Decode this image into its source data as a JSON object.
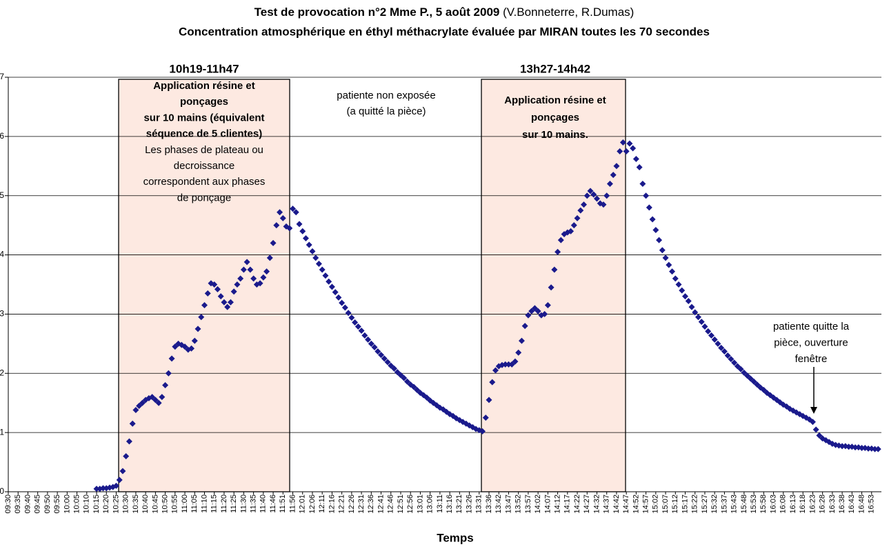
{
  "chart_data": {
    "type": "line",
    "marker": "diamond",
    "color": "#1a1a8c",
    "title": "Test de provocation n°2 Mme P.,  5 août 2009",
    "title_authors": "(V.Bonneterre, R.Dumas)",
    "subtitle": "Concentration atmosphérique en éthyl méthacrylate évaluée par MIRAN toutes les 70 secondes",
    "x_label": "Temps",
    "ylim": [
      0,
      7
    ],
    "yticks": [
      0,
      1,
      2,
      3,
      4,
      5,
      6,
      7
    ],
    "grid": true,
    "categories": [
      "09:30",
      null,
      null,
      "09:35",
      null,
      null,
      "09:40",
      null,
      null,
      "09:45",
      null,
      null,
      "09:50",
      null,
      null,
      "09:55",
      null,
      null,
      "10:00",
      null,
      null,
      "10:05",
      null,
      null,
      "10:10",
      null,
      null,
      "10:15",
      null,
      null,
      "10:20",
      null,
      null,
      "10:25",
      null,
      null,
      "10:30",
      null,
      null,
      "10:35",
      null,
      null,
      "10:40",
      null,
      null,
      "10:45",
      null,
      null,
      "10:50",
      null,
      null,
      "10:55",
      null,
      null,
      "11:00",
      null,
      null,
      "11:05",
      null,
      null,
      "11:10",
      null,
      null,
      "11:15",
      null,
      null,
      "11:20",
      null,
      null,
      "11:25",
      null,
      null,
      "11:30",
      null,
      null,
      "11:35",
      null,
      null,
      "11:40",
      null,
      null,
      "11:46",
      null,
      null,
      "11:51",
      null,
      null,
      "11:56",
      null,
      null,
      "12:01",
      null,
      null,
      "12:06",
      null,
      null,
      "12:11",
      null,
      null,
      "12:16",
      null,
      null,
      "12:21",
      null,
      null,
      "12:26",
      null,
      null,
      "12:31",
      null,
      null,
      "12:36",
      null,
      null,
      "12:41",
      null,
      null,
      "12:46",
      null,
      null,
      "12:51",
      null,
      null,
      "12:56",
      null,
      null,
      "13:01",
      null,
      null,
      "13:06",
      null,
      null,
      "13:11",
      null,
      null,
      "13:16",
      null,
      null,
      "13:21",
      null,
      null,
      "13:26",
      null,
      null,
      "13:31",
      null,
      null,
      "13:36",
      null,
      null,
      "13:42",
      null,
      null,
      "13:47",
      null,
      null,
      "13:52",
      null,
      null,
      "13:57",
      null,
      null,
      "14:02",
      null,
      null,
      "14:07",
      null,
      null,
      "14:12",
      null,
      null,
      "14:17",
      null,
      null,
      "14:22",
      null,
      null,
      "14:27",
      null,
      null,
      "14:32",
      null,
      null,
      "14:37",
      null,
      null,
      "14:42",
      null,
      null,
      "14:47",
      null,
      null,
      "14:52",
      null,
      null,
      "14:57",
      null,
      null,
      "15:02",
      null,
      null,
      "15:07",
      null,
      null,
      "15:12",
      null,
      null,
      "15:17",
      null,
      null,
      "15:22",
      null,
      null,
      "15:27",
      null,
      null,
      "15:32",
      null,
      null,
      "15:37",
      null,
      null,
      "15:43",
      null,
      null,
      "15:48",
      null,
      null,
      "15:53",
      null,
      null,
      "15:58",
      null,
      null,
      "16:03",
      null,
      null,
      "16:08",
      null,
      null,
      "16:13",
      null,
      null,
      "16:18",
      null,
      null,
      "16:23",
      null,
      null,
      "16:28",
      null,
      null,
      "16:33",
      null,
      null,
      "16:38",
      null,
      null,
      "16:43",
      null,
      null,
      "16:48",
      null,
      null,
      "16:53",
      null,
      null
    ],
    "values": [
      null,
      null,
      null,
      null,
      null,
      null,
      null,
      null,
      null,
      null,
      null,
      null,
      null,
      null,
      null,
      null,
      null,
      null,
      null,
      null,
      null,
      null,
      null,
      null,
      null,
      null,
      null,
      0.05,
      0.05,
      0.06,
      0.06,
      0.07,
      0.08,
      0.1,
      0.2,
      0.35,
      0.6,
      0.85,
      1.15,
      1.38,
      1.45,
      1.5,
      1.55,
      1.58,
      1.6,
      1.55,
      1.5,
      1.6,
      1.8,
      2.0,
      2.25,
      2.45,
      2.5,
      2.48,
      2.45,
      2.4,
      2.42,
      2.55,
      2.75,
      2.95,
      3.15,
      3.35,
      3.52,
      3.5,
      3.42,
      3.3,
      3.2,
      3.12,
      3.2,
      3.38,
      3.5,
      3.6,
      3.75,
      3.88,
      3.75,
      3.6,
      3.5,
      3.52,
      3.62,
      3.72,
      3.95,
      4.2,
      4.5,
      4.72,
      4.62,
      4.48,
      4.45,
      4.78,
      4.72,
      4.52,
      4.4,
      4.28,
      4.17,
      4.06,
      3.95,
      3.85,
      3.75,
      3.65,
      3.55,
      3.46,
      3.37,
      3.28,
      3.19,
      3.11,
      3.02,
      2.94,
      2.86,
      2.79,
      2.72,
      2.64,
      2.57,
      2.5,
      2.44,
      2.37,
      2.31,
      2.25,
      2.19,
      2.13,
      2.08,
      2.02,
      1.97,
      1.92,
      1.86,
      1.81,
      1.77,
      1.72,
      1.67,
      1.63,
      1.59,
      1.54,
      1.5,
      1.46,
      1.42,
      1.39,
      1.35,
      1.31,
      1.28,
      1.24,
      1.21,
      1.18,
      1.15,
      1.12,
      1.09,
      1.06,
      1.04,
      1.02,
      1.25,
      1.55,
      1.85,
      2.05,
      2.12,
      2.14,
      2.15,
      2.15,
      2.15,
      2.2,
      2.35,
      2.55,
      2.8,
      2.98,
      3.05,
      3.1,
      3.05,
      2.98,
      3.0,
      3.15,
      3.45,
      3.75,
      4.05,
      4.25,
      4.35,
      4.38,
      4.4,
      4.5,
      4.62,
      4.75,
      4.85,
      5.0,
      5.08,
      5.02,
      4.95,
      4.87,
      4.85,
      5.0,
      5.2,
      5.35,
      5.5,
      5.75,
      5.9,
      5.75,
      5.88,
      5.8,
      5.62,
      5.48,
      5.2,
      5.0,
      4.8,
      4.6,
      4.42,
      4.25,
      4.08,
      3.95,
      3.83,
      3.72,
      3.6,
      3.5,
      3.4,
      3.3,
      3.22,
      3.12,
      3.03,
      2.95,
      2.87,
      2.79,
      2.71,
      2.64,
      2.57,
      2.5,
      2.43,
      2.37,
      2.3,
      2.24,
      2.18,
      2.12,
      2.07,
      2.01,
      1.96,
      1.91,
      1.86,
      1.81,
      1.76,
      1.72,
      1.67,
      1.63,
      1.59,
      1.55,
      1.51,
      1.47,
      1.44,
      1.4,
      1.37,
      1.34,
      1.31,
      1.28,
      1.25,
      1.22,
      1.18,
      1.05,
      0.95,
      0.9,
      0.87,
      0.84,
      0.81,
      0.79,
      0.78,
      0.77,
      0.77,
      0.76,
      0.76,
      0.75,
      0.75,
      0.74,
      0.74,
      0.73,
      0.73,
      0.72,
      0.72
    ],
    "annotations": [
      {
        "label": "10h19-11h47",
        "lines": [
          {
            "text": "Application résine et",
            "bold": true
          },
          {
            "text": "ponçages",
            "bold": true
          },
          {
            "text": "sur 10 mains (équivalent",
            "bold": true
          },
          {
            "text": "séquence de 5 clientes)",
            "bold": true
          },
          {
            "text": "Les phases de plateau ou",
            "bold": false
          },
          {
            "text": "decroissance",
            "bold": false
          },
          {
            "text": "correspondent aux phases",
            "bold": false
          },
          {
            "text": "de ponçage",
            "bold": false
          }
        ]
      },
      {
        "lines": [
          {
            "text": "patiente non exposée",
            "bold": false
          },
          {
            "text": "(a quitté la pièce)",
            "bold": false
          }
        ]
      },
      {
        "label": "13h27-14h42",
        "lines": [
          {
            "text": "Application résine et",
            "bold": true
          },
          {
            "text": "ponçages",
            "bold": true
          },
          {
            "text": "sur 10 mains.",
            "bold": true
          }
        ]
      },
      {
        "lines": [
          {
            "text": "patiente quitte la",
            "bold": false
          },
          {
            "text": "pièce, ouverture",
            "bold": false
          },
          {
            "text": "fenêtre",
            "bold": false
          }
        ]
      }
    ]
  }
}
